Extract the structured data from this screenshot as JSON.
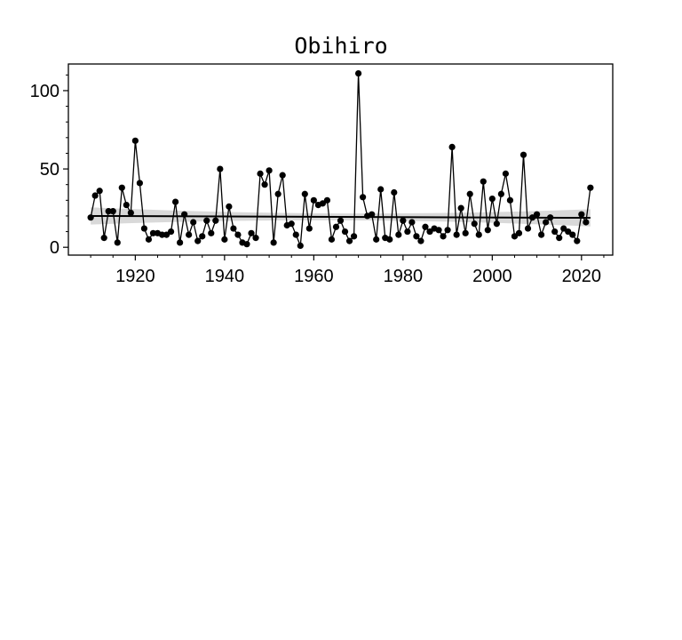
{
  "chart_data": {
    "type": "line",
    "title": "Obihiro",
    "xlabel": "",
    "ylabel": "",
    "xlim": [
      1905,
      2027
    ],
    "ylim": [
      -5,
      117
    ],
    "x_ticks": [
      1920,
      1940,
      1960,
      1980,
      2000,
      2020
    ],
    "y_ticks": [
      0,
      50,
      100
    ],
    "grid": false,
    "legend": "none",
    "colors": {
      "line": "#000000",
      "marker": "#000000",
      "trend": "#000000",
      "band": "#cccccc"
    },
    "series": [
      {
        "x": [
          1910,
          1911,
          1912,
          1913,
          1914,
          1915,
          1916,
          1917,
          1918,
          1919,
          1920,
          1921,
          1922,
          1923,
          1924,
          1925,
          1926,
          1927,
          1928,
          1929,
          1930,
          1931,
          1932,
          1933,
          1934,
          1935,
          1936,
          1937,
          1938,
          1939,
          1940,
          1941,
          1942,
          1943,
          1944,
          1945,
          1946,
          1947,
          1948,
          1949,
          1950,
          1951,
          1952,
          1953,
          1954,
          1955,
          1956,
          1957,
          1958,
          1959,
          1960,
          1961,
          1962,
          1963,
          1964,
          1965,
          1966,
          1967,
          1968,
          1969,
          1970,
          1971,
          1972,
          1973,
          1974,
          1975,
          1976,
          1977,
          1978,
          1979,
          1980,
          1981,
          1982,
          1983,
          1984,
          1985,
          1986,
          1987,
          1988,
          1989,
          1990,
          1991,
          1992,
          1993,
          1994,
          1995,
          1996,
          1997,
          1998,
          1999,
          2000,
          2001,
          2002,
          2003,
          2004,
          2005,
          2006,
          2007,
          2008,
          2009,
          2010,
          2011,
          2012,
          2013,
          2014,
          2015,
          2016,
          2017,
          2018,
          2019,
          2020,
          2021,
          2022
        ],
        "values": [
          19,
          33,
          36,
          6,
          23,
          23,
          3,
          38,
          27,
          22,
          68,
          41,
          12,
          5,
          9,
          9,
          8,
          8,
          10,
          29,
          3,
          21,
          8,
          16,
          4,
          7,
          17,
          9,
          17,
          50,
          5,
          26,
          12,
          8,
          3,
          2,
          9,
          6,
          47,
          40,
          49,
          3,
          34,
          46,
          14,
          15,
          8,
          1,
          34,
          12,
          30,
          27,
          28,
          30,
          5,
          13,
          17,
          10,
          4,
          7,
          111,
          32,
          20,
          21,
          5,
          37,
          6,
          5,
          35,
          8,
          17,
          10,
          16,
          7,
          4,
          13,
          10,
          12,
          11,
          7,
          11,
          64,
          8,
          25,
          9,
          34,
          15,
          8,
          42,
          11,
          31,
          15,
          34,
          47,
          30,
          7,
          9,
          59,
          12,
          19,
          21,
          8,
          16,
          19,
          10,
          6,
          12,
          10,
          8,
          4,
          21,
          16,
          38
        ]
      }
    ],
    "trend": {
      "x": [
        1910,
        2022
      ],
      "values": [
        20,
        18.8
      ]
    }
  }
}
